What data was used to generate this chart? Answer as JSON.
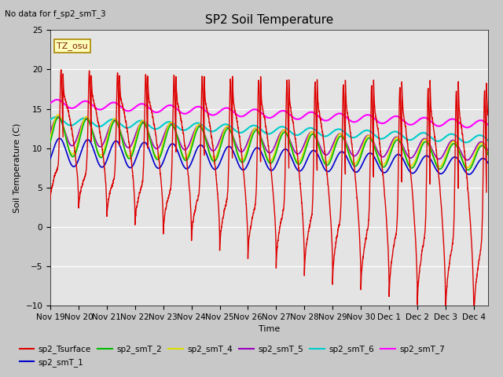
{
  "title": "SP2 Soil Temperature",
  "no_data_text": "No data for f_sp2_smT_3",
  "tz_label": "TZ_osu",
  "xlabel": "Time",
  "ylabel": "Soil Temperature (C)",
  "ylim": [
    -10,
    25
  ],
  "fig_bg": "#d8d8d8",
  "plot_bg": "#e0e0e0",
  "series_colors": {
    "sp2_Tsurface": "#dd0000",
    "sp2_smT_1": "#0000cc",
    "sp2_smT_2": "#00bb00",
    "sp2_smT_4": "#dddd00",
    "sp2_smT_5": "#9900bb",
    "sp2_smT_6": "#00cccc",
    "sp2_smT_7": "#ff00ff"
  },
  "tick_labels": [
    "Nov 19",
    "Nov 20",
    "Nov 21",
    "Nov 22",
    "Nov 23",
    "Nov 24",
    "Nov 25",
    "Nov 26",
    "Nov 27",
    "Nov 28",
    "Nov 29",
    "Nov 30",
    "Dec 1",
    "Dec 2",
    "Dec 3",
    "Dec 4"
  ]
}
